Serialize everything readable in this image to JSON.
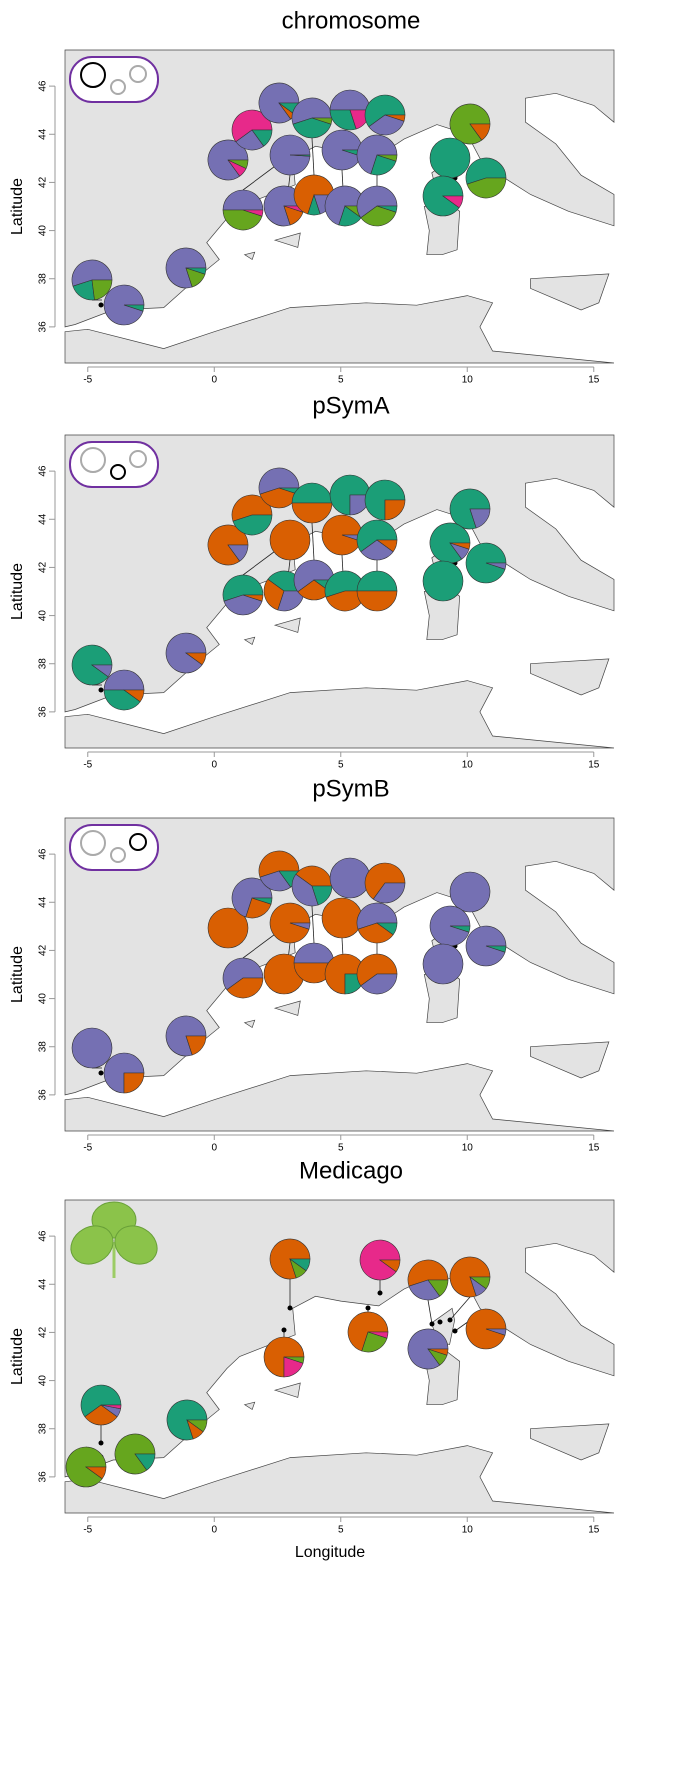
{
  "chart_data": [
    {
      "type": "pie",
      "title": "chromosome",
      "ylabel": "Latitude",
      "xlim": [
        -5.9,
        15.8
      ],
      "ylim": [
        34.5,
        47.5
      ],
      "xticks": [
        -5,
        0,
        5,
        10,
        15
      ],
      "yticks": [
        36,
        38,
        40,
        42,
        44,
        46
      ],
      "pies": [
        {
          "values": [
            55,
            22,
            23
          ],
          "colors": [
            "#7570b3",
            "#1b9e77",
            "#66a61e"
          ]
        },
        {
          "values": [
            95,
            5
          ],
          "colors": [
            "#7570b3",
            "#1b9e77"
          ]
        },
        {
          "values": [
            80,
            15,
            5
          ],
          "colors": [
            "#7570b3",
            "#66a61e",
            "#1b9e77"
          ]
        },
        {
          "values": [
            50,
            45,
            5
          ],
          "colors": [
            "#7570b3",
            "#66a61e",
            "#e7298a"
          ]
        },
        {
          "values": [
            80,
            15,
            5
          ],
          "colors": [
            "#7570b3",
            "#d95f02",
            "#e7298a"
          ]
        },
        {
          "values": [
            70,
            10,
            20
          ],
          "colors": [
            "#d95f02",
            "#1b9e77",
            "#7570b3"
          ]
        },
        {
          "values": [
            70,
            20,
            10
          ],
          "colors": [
            "#7570b3",
            "#1b9e77",
            "#66a61e"
          ]
        },
        {
          "values": [
            60,
            35,
            5
          ],
          "colors": [
            "#7570b3",
            "#66a61e",
            "#1b9e77"
          ]
        },
        {
          "values": [
            85,
            8,
            7
          ],
          "colors": [
            "#7570b3",
            "#e7298a",
            "#66a61e"
          ]
        },
        {
          "values": [
            99,
            1
          ],
          "colors": [
            "#7570b3",
            "#1b9e77"
          ]
        },
        {
          "values": [
            95,
            5
          ],
          "colors": [
            "#7570b3",
            "#1b9e77"
          ]
        },
        {
          "values": [
            70,
            25,
            5
          ],
          "colors": [
            "#7570b3",
            "#1b9e77",
            "#66a61e"
          ]
        },
        {
          "values": [
            60,
            25,
            15
          ],
          "colors": [
            "#e7298a",
            "#7570b3",
            "#1b9e77"
          ]
        },
        {
          "values": [
            85,
            5,
            10
          ],
          "colors": [
            "#7570b3",
            "#d95f02",
            "#1b9e77"
          ]
        },
        {
          "values": [
            55,
            40,
            5
          ],
          "colors": [
            "#7570b3",
            "#1b9e77",
            "#66a61e"
          ]
        },
        {
          "values": [
            50,
            30,
            20
          ],
          "colors": [
            "#7570b3",
            "#1b9e77",
            "#e7298a"
          ]
        },
        {
          "values": [
            60,
            35,
            5
          ],
          "colors": [
            "#1b9e77",
            "#7570b3",
            "#d95f02"
          ]
        },
        {
          "values": [
            85,
            15
          ],
          "colors": [
            "#66a61e",
            "#d95f02"
          ]
        },
        {
          "values": [
            100
          ],
          "colors": [
            "#1b9e77"
          ]
        },
        {
          "values": [
            55,
            45
          ],
          "colors": [
            "#1b9e77",
            "#66a61e"
          ]
        },
        {
          "values": [
            90,
            10
          ],
          "colors": [
            "#1b9e77",
            "#e7298a"
          ]
        }
      ]
    },
    {
      "type": "pie",
      "title": "pSymA",
      "ylabel": "Latitude",
      "xlim": [
        -5.9,
        15.8
      ],
      "ylim": [
        34.5,
        47.5
      ],
      "xticks": [
        -5,
        0,
        5,
        10,
        15
      ],
      "yticks": [
        36,
        38,
        40,
        42,
        44,
        46
      ],
      "pies": [
        {
          "values": [
            90,
            10
          ],
          "colors": [
            "#1b9e77",
            "#7570b3"
          ]
        },
        {
          "values": [
            50,
            40,
            10
          ],
          "colors": [
            "#7570b3",
            "#1b9e77",
            "#d95f02"
          ]
        },
        {
          "values": [
            90,
            10
          ],
          "colors": [
            "#7570b3",
            "#d95f02"
          ]
        },
        {
          "values": [
            55,
            40,
            5
          ],
          "colors": [
            "#1b9e77",
            "#7570b3",
            "#d95f02"
          ]
        },
        {
          "values": [
            40,
            30,
            30
          ],
          "colors": [
            "#1b9e77",
            "#d95f02",
            "#7570b3"
          ]
        },
        {
          "values": [
            60,
            30,
            10
          ],
          "colors": [
            "#7570b3",
            "#d95f02",
            "#1b9e77"
          ]
        },
        {
          "values": [
            55,
            45
          ],
          "colors": [
            "#1b9e77",
            "#d95f02"
          ]
        },
        {
          "values": [
            50,
            50
          ],
          "colors": [
            "#1b9e77",
            "#d95f02"
          ]
        },
        {
          "values": [
            85,
            15
          ],
          "colors": [
            "#d95f02",
            "#7570b3"
          ]
        },
        {
          "values": [
            100
          ],
          "colors": [
            "#d95f02"
          ]
        },
        {
          "values": [
            95,
            5
          ],
          "colors": [
            "#d95f02",
            "#7570b3"
          ]
        },
        {
          "values": [
            60,
            30,
            10
          ],
          "colors": [
            "#1b9e77",
            "#7570b3",
            "#d95f02"
          ]
        },
        {
          "values": [
            55,
            45
          ],
          "colors": [
            "#d95f02",
            "#1b9e77"
          ]
        },
        {
          "values": [
            55,
            40,
            5
          ],
          "colors": [
            "#7570b3",
            "#d95f02",
            "#1b9e77"
          ]
        },
        {
          "values": [
            50,
            50
          ],
          "colors": [
            "#1b9e77",
            "#d95f02"
          ]
        },
        {
          "values": [
            75,
            25
          ],
          "colors": [
            "#1b9e77",
            "#7570b3"
          ]
        },
        {
          "values": [
            75,
            25
          ],
          "colors": [
            "#1b9e77",
            "#d95f02"
          ]
        },
        {
          "values": [
            80,
            20
          ],
          "colors": [
            "#1b9e77",
            "#7570b3"
          ]
        },
        {
          "values": [
            85,
            10,
            5
          ],
          "colors": [
            "#1b9e77",
            "#7570b3",
            "#d95f02"
          ]
        },
        {
          "values": [
            95,
            5
          ],
          "colors": [
            "#1b9e77",
            "#7570b3"
          ]
        },
        {
          "values": [
            100
          ],
          "colors": [
            "#1b9e77"
          ]
        }
      ]
    },
    {
      "type": "pie",
      "title": "pSymB",
      "ylabel": "Latitude",
      "xlim": [
        -5.9,
        15.8
      ],
      "ylim": [
        34.5,
        47.5
      ],
      "xticks": [
        -5,
        0,
        5,
        10,
        15
      ],
      "yticks": [
        36,
        38,
        40,
        42,
        44,
        46
      ],
      "pies": [
        {
          "values": [
            100
          ],
          "colors": [
            "#7570b3"
          ]
        },
        {
          "values": [
            75,
            25
          ],
          "colors": [
            "#7570b3",
            "#d95f02"
          ]
        },
        {
          "values": [
            80,
            20
          ],
          "colors": [
            "#7570b3",
            "#d95f02"
          ]
        },
        {
          "values": [
            60,
            40
          ],
          "colors": [
            "#7570b3",
            "#d95f02"
          ]
        },
        {
          "values": [
            100
          ],
          "colors": [
            "#d95f02"
          ]
        },
        {
          "values": [
            50,
            50
          ],
          "colors": [
            "#7570b3",
            "#d95f02"
          ]
        },
        {
          "values": [
            75,
            25
          ],
          "colors": [
            "#d95f02",
            "#1b9e77"
          ]
        },
        {
          "values": [
            60,
            40
          ],
          "colors": [
            "#d95f02",
            "#7570b3"
          ]
        },
        {
          "values": [
            100
          ],
          "colors": [
            "#d95f02"
          ]
        },
        {
          "values": [
            95,
            5
          ],
          "colors": [
            "#d95f02",
            "#7570b3"
          ]
        },
        {
          "values": [
            100
          ],
          "colors": [
            "#d95f02"
          ]
        },
        {
          "values": [
            55,
            35,
            10
          ],
          "colors": [
            "#7570b3",
            "#d95f02",
            "#1b9e77"
          ]
        },
        {
          "values": [
            70,
            25,
            5
          ],
          "colors": [
            "#7570b3",
            "#d95f02",
            "#1b9e77"
          ]
        },
        {
          "values": [
            55,
            30,
            15
          ],
          "colors": [
            "#d95f02",
            "#7570b3",
            "#1b9e77"
          ]
        },
        {
          "values": [
            40,
            40,
            20
          ],
          "colors": [
            "#d95f02",
            "#7570b3",
            "#1b9e77"
          ]
        },
        {
          "values": [
            100
          ],
          "colors": [
            "#7570b3"
          ]
        },
        {
          "values": [
            65,
            35
          ],
          "colors": [
            "#d95f02",
            "#7570b3"
          ]
        },
        {
          "values": [
            100
          ],
          "colors": [
            "#7570b3"
          ]
        },
        {
          "values": [
            95,
            5
          ],
          "colors": [
            "#7570b3",
            "#1b9e77"
          ]
        },
        {
          "values": [
            95,
            5
          ],
          "colors": [
            "#7570b3",
            "#1b9e77"
          ]
        },
        {
          "values": [
            100
          ],
          "colors": [
            "#7570b3"
          ]
        }
      ]
    },
    {
      "type": "pie",
      "title": "Medicago",
      "ylabel": "Latitude",
      "xlabel": "Longitude",
      "xlim": [
        -5.9,
        15.8
      ],
      "ylim": [
        34.5,
        47.5
      ],
      "xticks": [
        -5,
        0,
        5,
        10,
        15
      ],
      "yticks": [
        36,
        38,
        40,
        42,
        44,
        46
      ],
      "pies": [
        {
          "values": [
            60,
            30,
            7,
            3
          ],
          "colors": [
            "#1b9e77",
            "#d95f02",
            "#7570b3",
            "#e7298a"
          ]
        },
        {
          "values": [
            90,
            10
          ],
          "colors": [
            "#66a61e",
            "#d95f02"
          ]
        },
        {
          "values": [
            85,
            15
          ],
          "colors": [
            "#66a61e",
            "#1b9e77"
          ]
        },
        {
          "values": [
            80,
            10,
            10
          ],
          "colors": [
            "#1b9e77",
            "#d95f02",
            "#66a61e"
          ]
        },
        {
          "values": [
            80,
            10,
            10
          ],
          "colors": [
            "#d95f02",
            "#66a61e",
            "#1b9e77"
          ]
        },
        {
          "values": [
            75,
            20,
            5
          ],
          "colors": [
            "#d95f02",
            "#e7298a",
            "#66a61e"
          ]
        },
        {
          "values": [
            90,
            10
          ],
          "colors": [
            "#e7298a",
            "#d95f02"
          ]
        },
        {
          "values": [
            70,
            25,
            5
          ],
          "colors": [
            "#d95f02",
            "#66a61e",
            "#e7298a"
          ]
        },
        {
          "values": [
            55,
            30,
            15
          ],
          "colors": [
            "#d95f02",
            "#7570b3",
            "#66a61e"
          ]
        },
        {
          "values": [
            80,
            10,
            10
          ],
          "colors": [
            "#d95f02",
            "#7570b3",
            "#66a61e"
          ]
        },
        {
          "values": [
            95,
            5
          ],
          "colors": [
            "#d95f02",
            "#7570b3"
          ]
        },
        {
          "values": [
            85,
            10,
            5
          ],
          "colors": [
            "#7570b3",
            "#66a61e",
            "#d95f02"
          ]
        }
      ]
    }
  ]
}
